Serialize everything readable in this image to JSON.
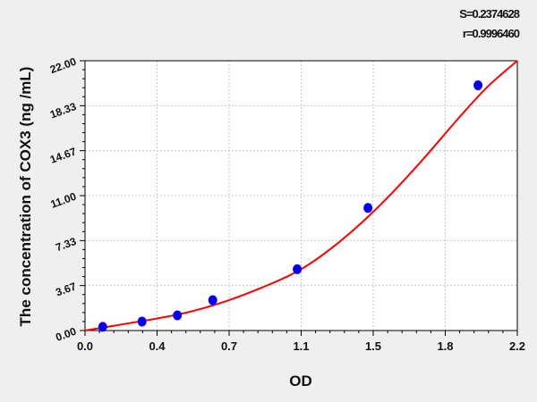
{
  "chart_data": {
    "type": "scatter",
    "title": "",
    "xlabel": "OD",
    "ylabel": "The concentration of COX3 (ng /mL)",
    "xlim": [
      0,
      2.2
    ],
    "ylim": [
      0,
      22
    ],
    "x_ticks": [
      "0.0",
      "0.4",
      "0.7",
      "1.1",
      "1.5",
      "1.8",
      "2.2"
    ],
    "y_ticks": [
      "0.00",
      "3.67",
      "7.33",
      "11.00",
      "14.67",
      "18.33",
      "22.00"
    ],
    "grid": true,
    "points": {
      "x": [
        0.09,
        0.29,
        0.47,
        0.65,
        1.08,
        1.44,
        2.0
      ],
      "y": [
        0.3,
        0.73,
        1.24,
        2.48,
        5.0,
        10.0,
        20.0
      ],
      "color": "#0000ee"
    },
    "fit_curve": {
      "x": [
        0,
        0.3,
        0.5,
        0.7,
        0.9,
        1.1,
        1.3,
        1.5,
        1.7,
        1.9,
        2.05,
        2.2
      ],
      "y": [
        0,
        0.8,
        1.4,
        2.3,
        3.5,
        5.0,
        7.3,
        10.2,
        13.6,
        17.3,
        19.9,
        22.0
      ],
      "color": "#ff0000"
    },
    "stats": {
      "s": "S=0.2374628",
      "r": "r=0.9996460"
    }
  }
}
